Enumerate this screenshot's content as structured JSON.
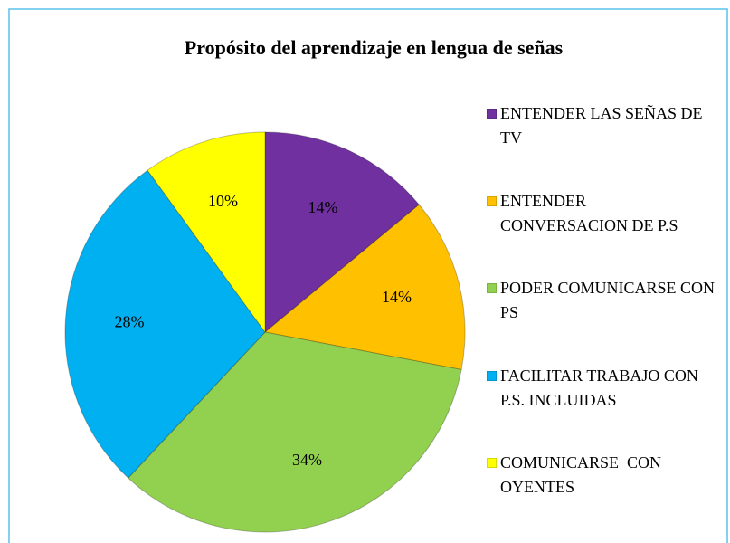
{
  "chart_data": {
    "type": "pie",
    "title": "Propósito del aprendizaje en lengua de señas",
    "categories": [
      "ENTENDER LAS SEÑAS DE TV",
      "ENTENDER CONVERSACION DE P.S",
      "PODER COMUNICARSE CON PS",
      "FACILITAR TRABAJO CON P.S. INCLUIDAS",
      "COMUNICARSE  CON OYENTES"
    ],
    "values": [
      14,
      14,
      34,
      28,
      10
    ],
    "colors": [
      "#7030a0",
      "#ffc000",
      "#92d050",
      "#00b0f0",
      "#ffff00"
    ],
    "legend": "right"
  }
}
